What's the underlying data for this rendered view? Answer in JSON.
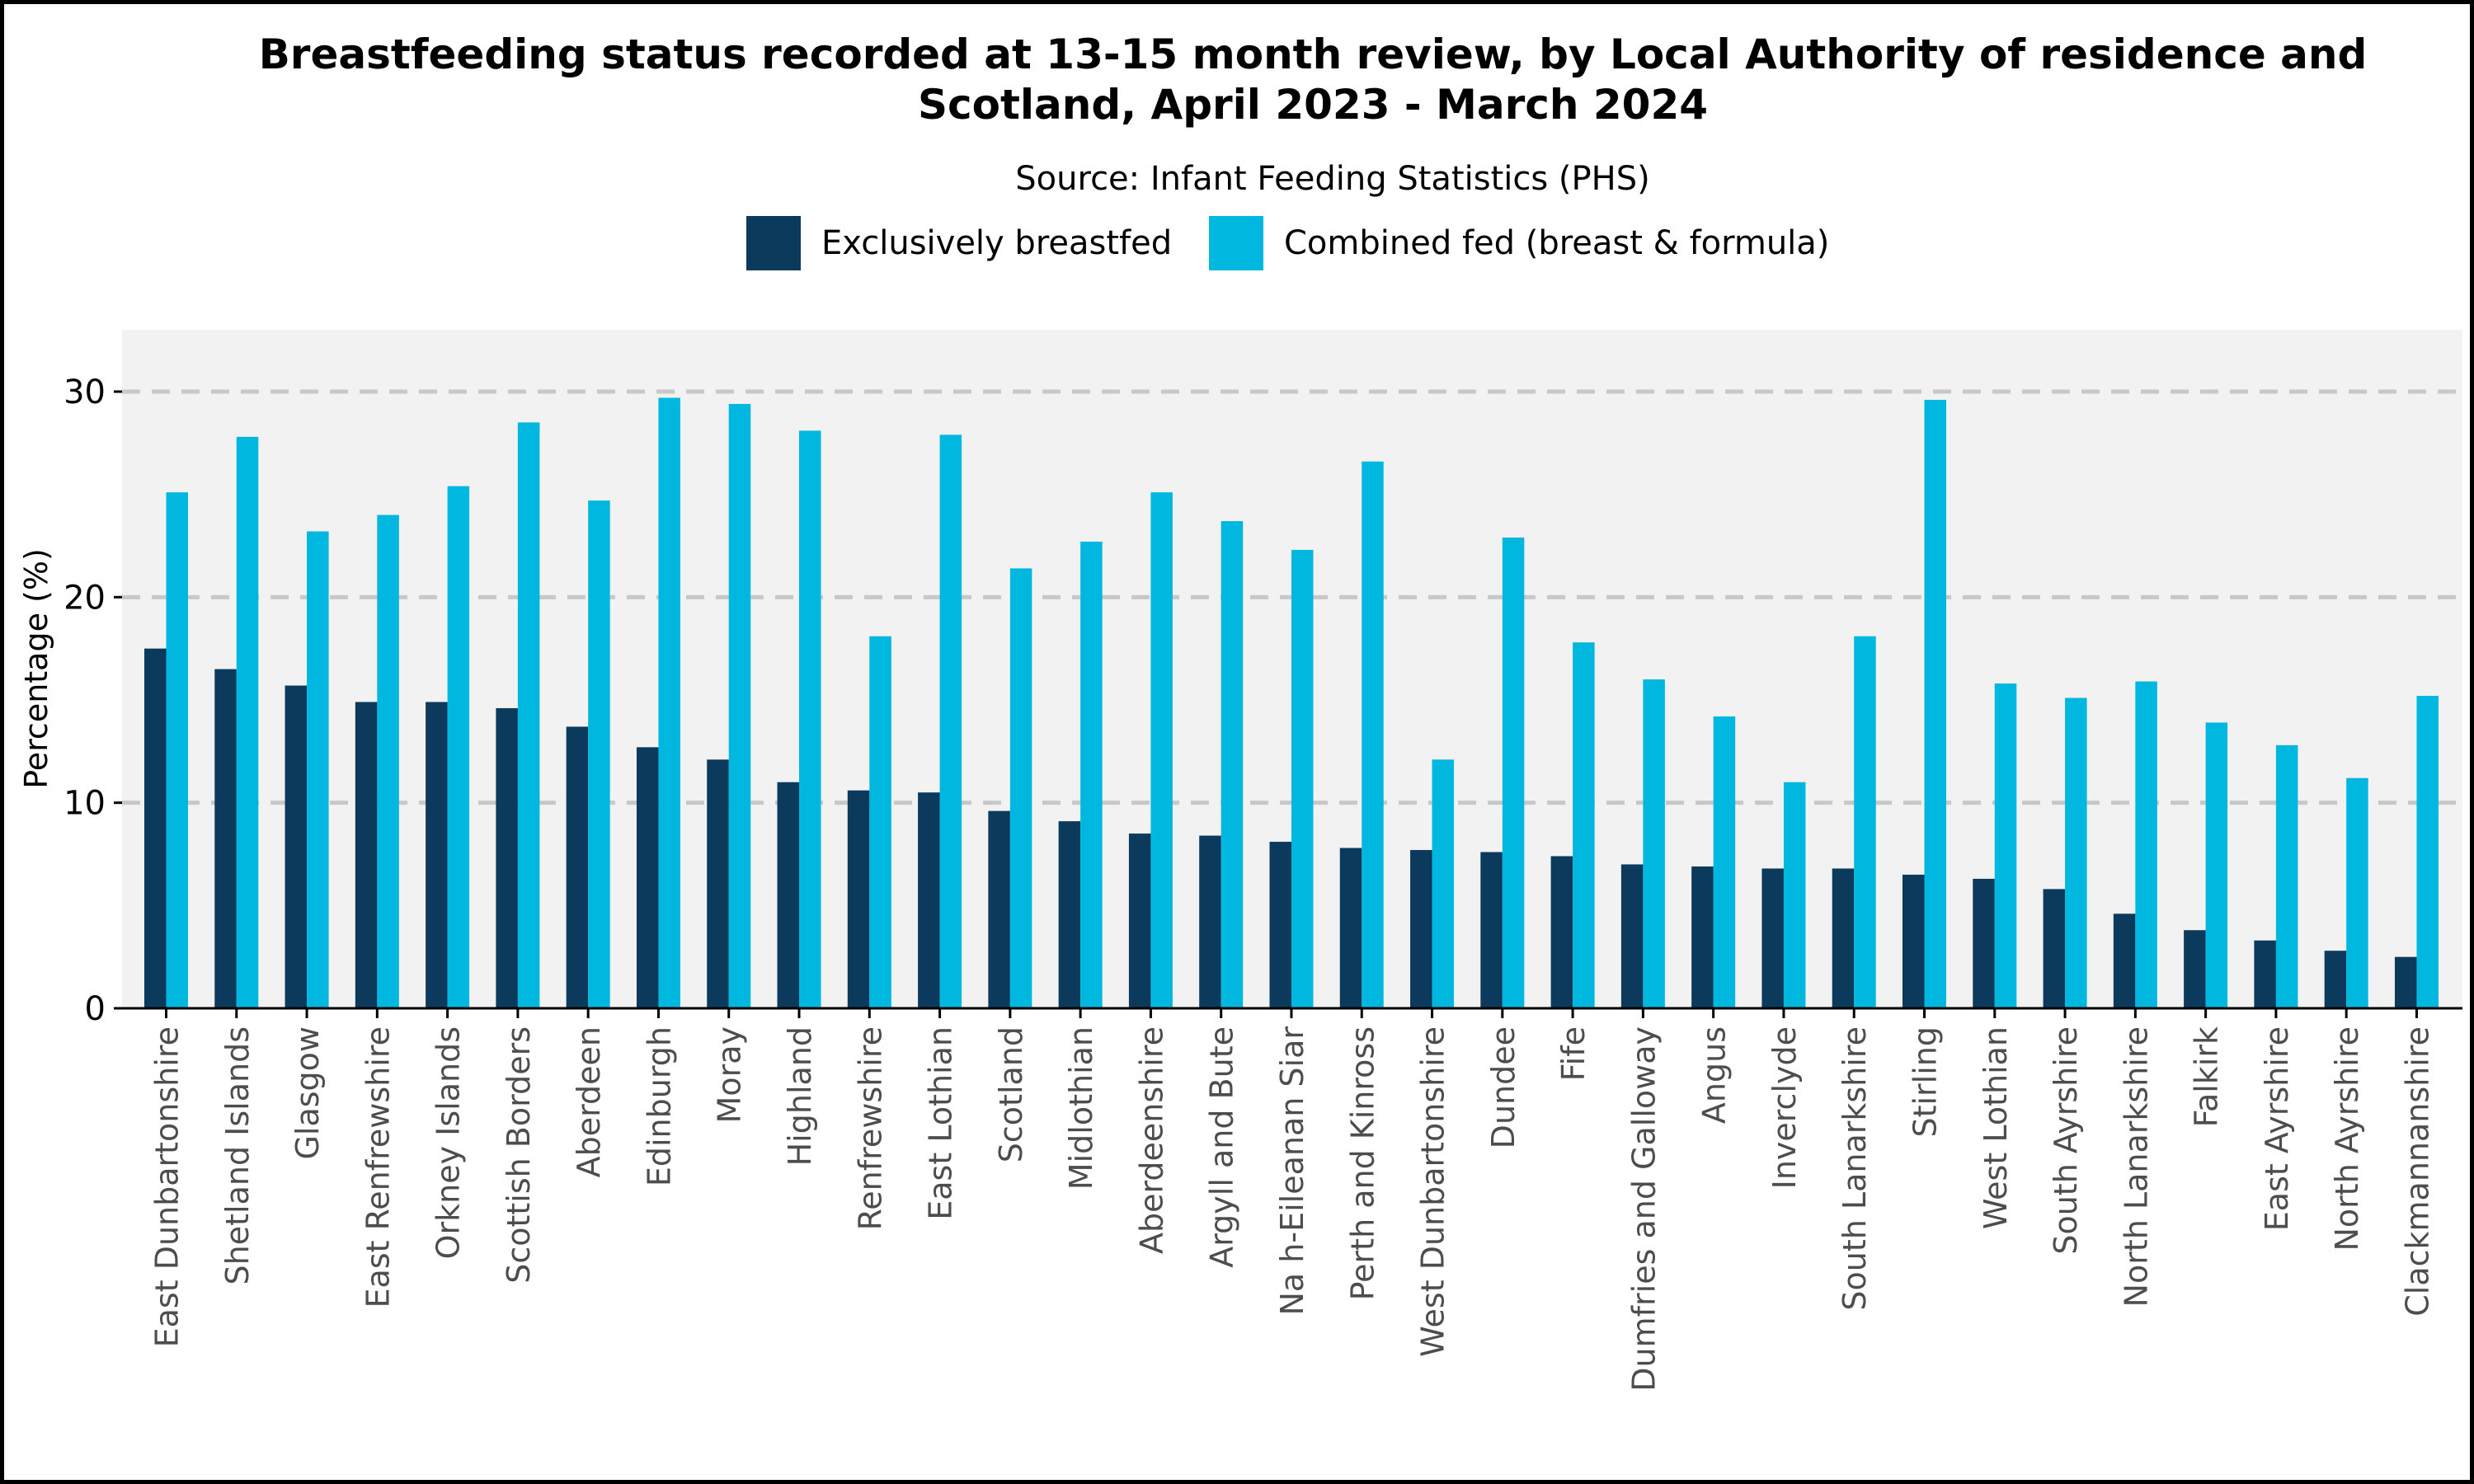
{
  "chart_data": {
    "type": "bar",
    "title_line1": "Breastfeeding status recorded at 13-15 month review, by Local Authority of residence and",
    "title_line2": "Scotland, April 2023 - March 2024",
    "subtitle": "Source: Infant Feeding Statistics (PHS)",
    "xlabel": "",
    "ylabel": "Percentage  (%)",
    "ylim": [
      0,
      32.5
    ],
    "yticks": [
      0,
      10,
      20,
      30
    ],
    "grid": "horizontal dashed",
    "legend_position": "top",
    "categories": [
      "East Dunbartonshire",
      "Shetland Islands",
      "Glasgow",
      "East Renfrewshire",
      "Orkney Islands",
      "Scottish Borders",
      "Aberdeen",
      "Edinburgh",
      "Moray",
      "Highland",
      "Renfrewshire",
      "East Lothian",
      "Scotland",
      "Midlothian",
      "Aberdeenshire",
      "Argyll and Bute",
      "Na h-Eileanan Siar",
      "Perth and Kinross",
      "West Dunbartonshire",
      "Dundee",
      "Fife",
      "Dumfries and Galloway",
      "Angus",
      "Inverclyde",
      "South Lanarkshire",
      "Stirling",
      "West Lothian",
      "South Ayrshire",
      "North Lanarkshire",
      "Falkirk",
      "East Ayrshire",
      "North Ayrshire",
      "Clackmannanshire"
    ],
    "series": [
      {
        "name": "Exclusively breastfed",
        "color": "#0b3a5c",
        "values": [
          17.5,
          16.5,
          15.7,
          14.9,
          14.9,
          14.6,
          13.7,
          12.7,
          12.1,
          11.0,
          10.6,
          10.5,
          9.6,
          9.1,
          8.5,
          8.4,
          8.1,
          7.8,
          7.7,
          7.6,
          7.4,
          7.0,
          6.9,
          6.8,
          6.8,
          6.5,
          6.3,
          5.8,
          4.6,
          3.8,
          3.3,
          2.8,
          2.5
        ]
      },
      {
        "name": "Combined fed (breast & formula)",
        "color": "#00b7df",
        "values": [
          25.1,
          27.8,
          23.2,
          24.0,
          25.4,
          28.5,
          24.7,
          29.7,
          29.4,
          28.1,
          18.1,
          27.9,
          21.4,
          22.7,
          25.1,
          23.7,
          22.3,
          26.6,
          12.1,
          22.9,
          17.8,
          16.0,
          14.2,
          11.0,
          18.1,
          29.6,
          15.8,
          15.1,
          15.9,
          13.9,
          12.8,
          11.2,
          15.2
        ]
      }
    ]
  },
  "colors": {
    "panel_background": "#f2f2f2",
    "gridline": "#c8c8c8",
    "axis": "#000000"
  }
}
